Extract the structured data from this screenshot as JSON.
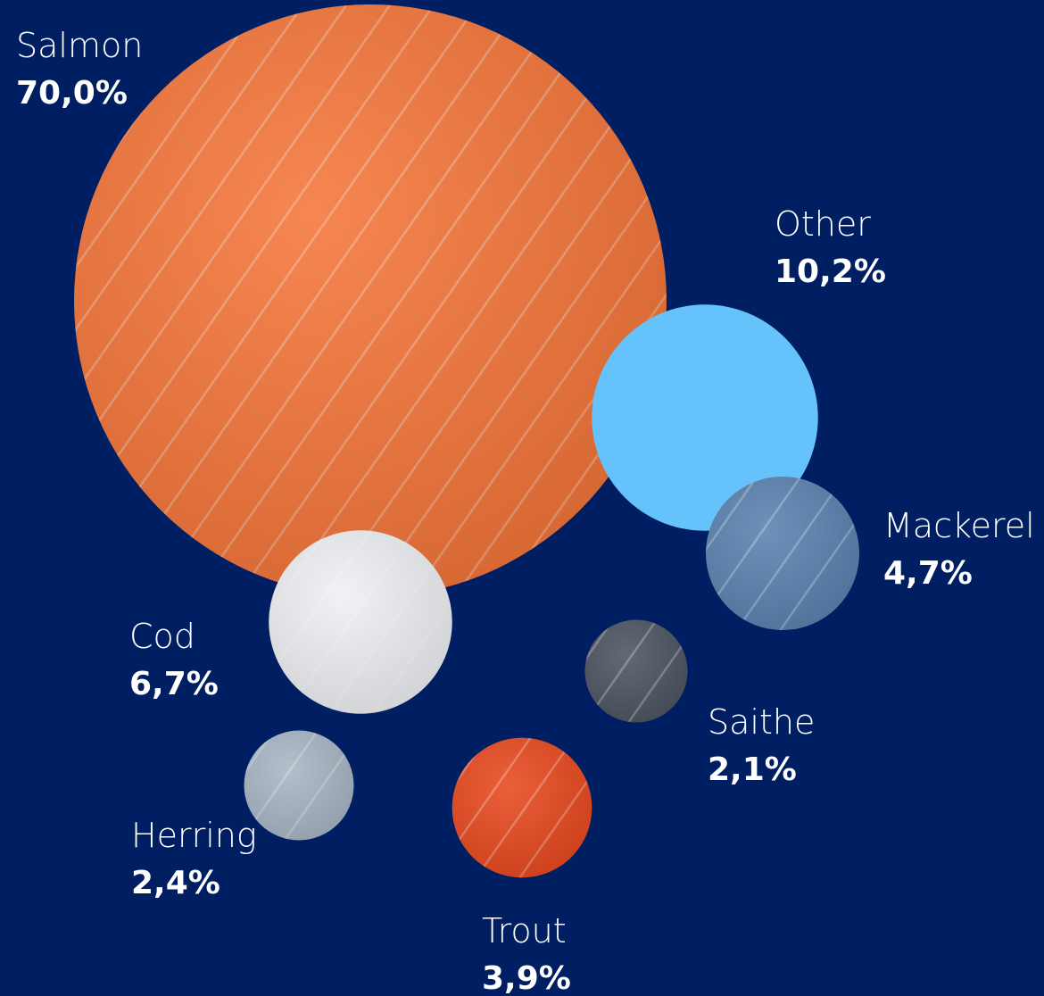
{
  "chart_data": {
    "type": "bubble",
    "categories": [
      "Salmon",
      "Other",
      "Mackerel",
      "Cod",
      "Saithe",
      "Herring",
      "Trout"
    ],
    "values": [
      70.0,
      10.2,
      4.7,
      6.7,
      2.1,
      2.4,
      3.9
    ],
    "value_labels": [
      "70,0%",
      "10,2%",
      "4,7%",
      "6,7%",
      "2,1%",
      "2,4%",
      "3,9%"
    ],
    "colors": [
      "#f4763a",
      "#66c2fb",
      "#5b82b0",
      "#eef0f3",
      "#4d5563",
      "#a8b6c4",
      "#e84a1f"
    ]
  }
}
